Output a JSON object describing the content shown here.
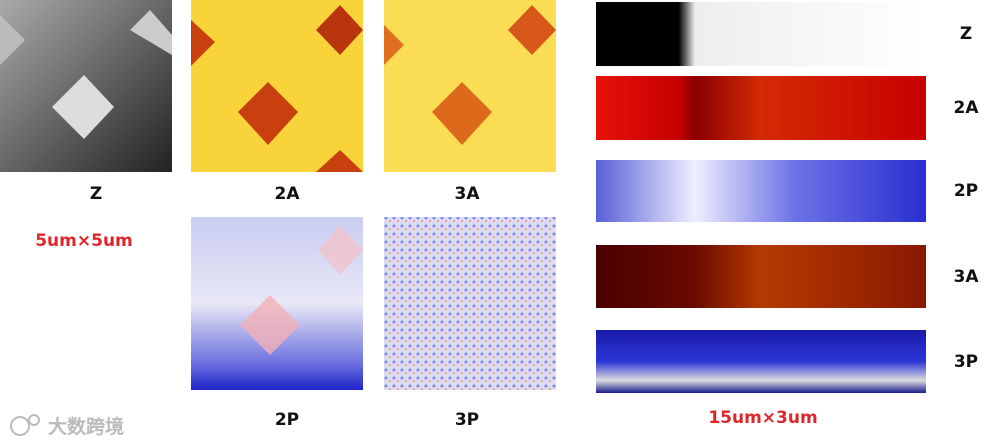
{
  "left_panels": {
    "top_row": [
      "Z",
      "2A",
      "3A"
    ],
    "scale": "5um×5um",
    "bottom_row": [
      "2P",
      "3P"
    ]
  },
  "right_strips": {
    "labels": [
      "Z",
      "2A",
      "2P",
      "3A",
      "3P"
    ],
    "scale": "15um×3um"
  },
  "watermark": "大数跨境"
}
